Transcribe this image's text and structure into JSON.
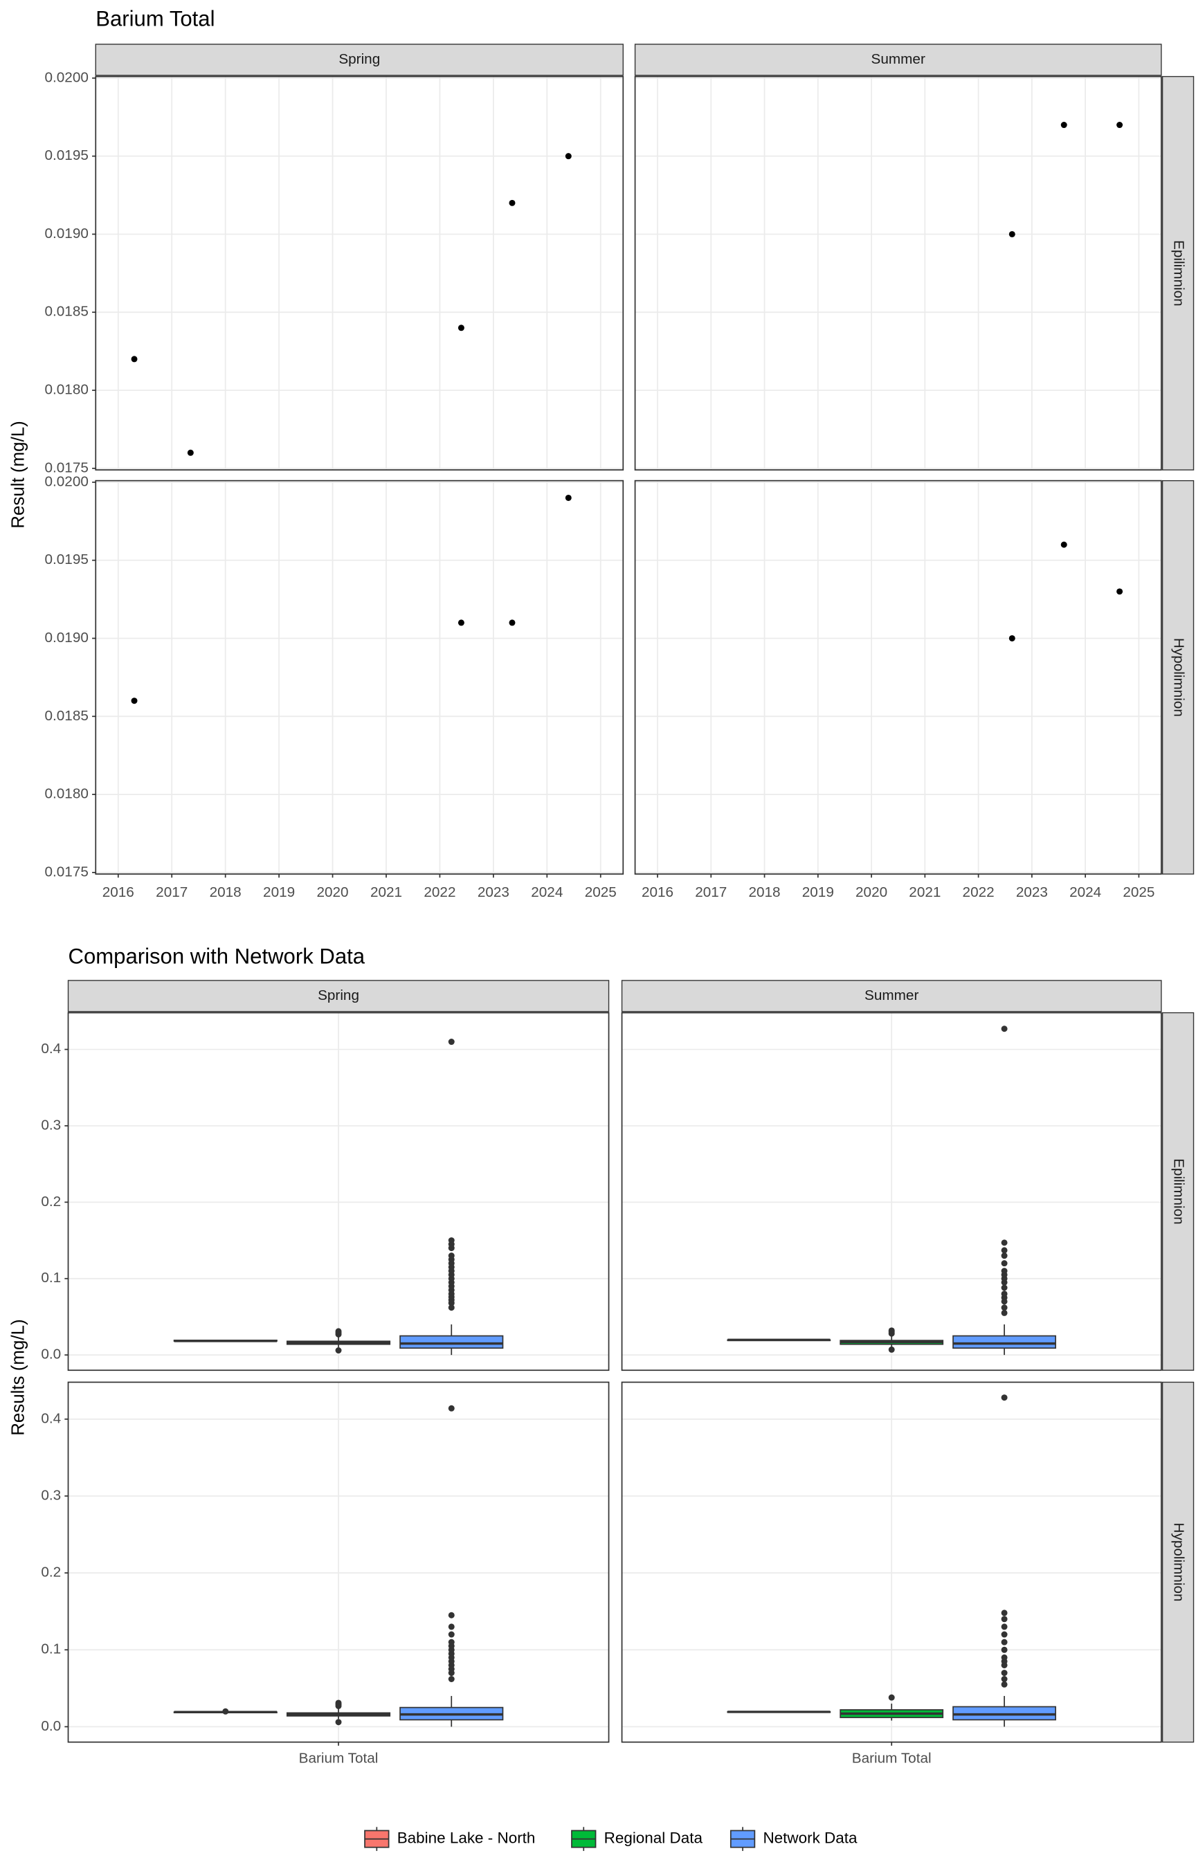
{
  "chart_data": [
    {
      "type": "scatter",
      "title": "Barium Total",
      "y_label": "Result (mg/L)",
      "columns": [
        "Spring",
        "Summer"
      ],
      "rows": [
        "Epilimnion",
        "Hypolimnion"
      ],
      "xlim": [
        2015.58,
        2025.42
      ],
      "xticks": [
        2016,
        2017,
        2018,
        2019,
        2020,
        2021,
        2022,
        2023,
        2024,
        2025
      ],
      "ylim": [
        0.01749,
        0.02001
      ],
      "yticks": [
        0.0175,
        {
          "value": 0.018,
          "label": "0.0180"
        },
        0.0185,
        {
          "value": 0.019,
          "label": "0.0190"
        },
        0.0195,
        {
          "value": 0.02,
          "label": "0.0200"
        }
      ],
      "grid": true,
      "color": "#000000",
      "panels": [
        [
          {
            "x": [
              2016.3,
              2017.35,
              2022.4,
              2023.35,
              2024.4
            ],
            "y": [
              0.0182,
              0.0176,
              0.0184,
              0.0192,
              0.0195
            ]
          },
          {
            "x": [
              2022.63,
              2023.6,
              2024.64
            ],
            "y": [
              0.019,
              0.0197,
              0.0197
            ]
          }
        ],
        [
          {
            "x": [
              2016.3,
              2022.4,
              2023.35,
              2024.4
            ],
            "y": [
              0.0186,
              0.0191,
              0.0191,
              0.0199
            ]
          },
          {
            "x": [
              2022.63,
              2023.6,
              2024.64
            ],
            "y": [
              0.019,
              0.0196,
              0.0193
            ]
          }
        ]
      ]
    },
    {
      "type": "box",
      "title": "Comparison with Network Data",
      "y_label": "Results (mg/L)",
      "columns": [
        "Spring",
        "Summer"
      ],
      "rows": [
        "Epilimnion",
        "Hypolimnion"
      ],
      "categories": [
        "Barium Total"
      ],
      "ylim": [
        -0.02,
        0.448
      ],
      "yticks": [
        {
          "value": 0,
          "label": "0.0"
        },
        0.1,
        0.2,
        0.3,
        0.4
      ],
      "grid": true,
      "series": [
        {
          "name": "Babine Lake - North",
          "color": "#F8766D",
          "boxes": [
            [
              {
                "low": 0.0176,
                "q1": 0.0182,
                "median": 0.0184,
                "q3": 0.0192,
                "high": 0.0195,
                "outliers": []
              },
              {
                "low": 0.019,
                "q1": 0.0193,
                "median": 0.0197,
                "q3": 0.0197,
                "high": 0.0197,
                "outliers": []
              }
            ],
            [
              {
                "low": 0.0186,
                "q1": 0.0189,
                "median": 0.0191,
                "q3": 0.0191,
                "high": 0.0191,
                "outliers": [
                  0.0199
                ]
              },
              {
                "low": 0.019,
                "q1": 0.0192,
                "median": 0.0193,
                "q3": 0.0195,
                "high": 0.0196,
                "outliers": []
              }
            ]
          ]
        },
        {
          "name": "Regional Data",
          "color": "#00BA38",
          "boxes": [
            [
              {
                "low": 0.01,
                "q1": 0.014,
                "median": 0.016,
                "q3": 0.018,
                "high": 0.024,
                "outliers": [
                  0.006,
                  0.027,
                  0.029,
                  0.031
                ]
              },
              {
                "low": 0.01,
                "q1": 0.014,
                "median": 0.017,
                "q3": 0.019,
                "high": 0.025,
                "outliers": [
                  0.007,
                  0.028,
                  0.03,
                  0.032
                ]
              }
            ],
            [
              {
                "low": 0.01,
                "q1": 0.014,
                "median": 0.016,
                "q3": 0.018,
                "high": 0.024,
                "outliers": [
                  0.006,
                  0.027,
                  0.029,
                  0.031
                ]
              },
              {
                "low": 0.008,
                "q1": 0.012,
                "median": 0.017,
                "q3": 0.022,
                "high": 0.03,
                "outliers": [
                  0.038
                ]
              }
            ]
          ]
        },
        {
          "name": "Network Data",
          "color": "#619CFF",
          "boxes": [
            [
              {
                "low": 0.0,
                "q1": 0.009,
                "median": 0.015,
                "q3": 0.025,
                "high": 0.04,
                "outliers": [
                  0.062,
                  0.068,
                  0.072,
                  0.076,
                  0.08,
                  0.085,
                  0.09,
                  0.095,
                  0.1,
                  0.105,
                  0.11,
                  0.115,
                  0.12,
                  0.125,
                  0.13,
                  0.14,
                  0.145,
                  0.15,
                  0.41
                ]
              },
              {
                "low": 0.0,
                "q1": 0.009,
                "median": 0.015,
                "q3": 0.025,
                "high": 0.04,
                "outliers": [
                  0.055,
                  0.062,
                  0.07,
                  0.075,
                  0.08,
                  0.088,
                  0.095,
                  0.1,
                  0.105,
                  0.11,
                  0.12,
                  0.13,
                  0.137,
                  0.147,
                  0.427
                ]
              }
            ],
            [
              {
                "low": 0.0,
                "q1": 0.009,
                "median": 0.016,
                "q3": 0.025,
                "high": 0.04,
                "outliers": [
                  0.062,
                  0.07,
                  0.075,
                  0.08,
                  0.085,
                  0.09,
                  0.095,
                  0.1,
                  0.105,
                  0.11,
                  0.12,
                  0.13,
                  0.145,
                  0.414
                ]
              },
              {
                "low": 0.0,
                "q1": 0.009,
                "median": 0.016,
                "q3": 0.026,
                "high": 0.04,
                "outliers": [
                  0.055,
                  0.062,
                  0.07,
                  0.08,
                  0.085,
                  0.09,
                  0.1,
                  0.11,
                  0.12,
                  0.13,
                  0.14,
                  0.148,
                  0.428
                ]
              }
            ]
          ]
        }
      ]
    }
  ]
}
